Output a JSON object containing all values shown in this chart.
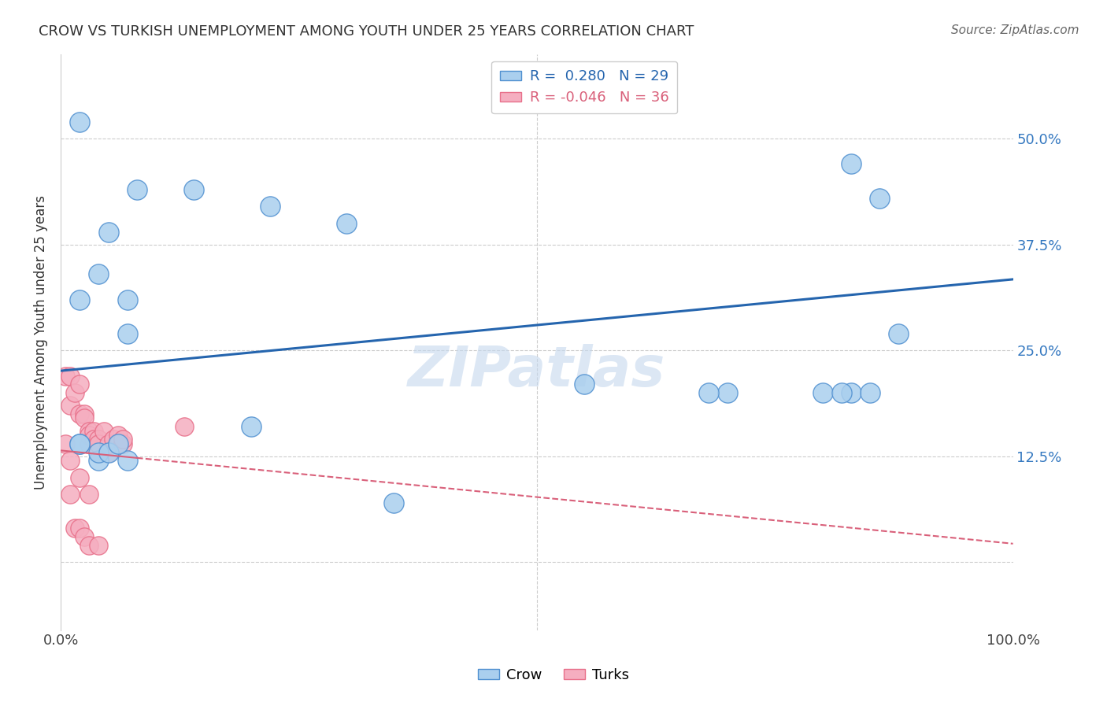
{
  "title": "CROW VS TURKISH UNEMPLOYMENT AMONG YOUTH UNDER 25 YEARS CORRELATION CHART",
  "source": "Source: ZipAtlas.com",
  "ylabel": "Unemployment Among Youth under 25 years",
  "xlim": [
    0,
    1.0
  ],
  "ylim": [
    -0.08,
    0.6
  ],
  "xticks": [
    0.0,
    0.25,
    0.5,
    0.75,
    1.0
  ],
  "xticklabels": [
    "0.0%",
    "",
    "",
    "",
    "100.0%"
  ],
  "yticks": [
    0.0,
    0.125,
    0.25,
    0.375,
    0.5
  ],
  "yticklabels_right": [
    "",
    "12.5%",
    "25.0%",
    "37.5%",
    "50.0%"
  ],
  "crow_R": 0.28,
  "crow_N": 29,
  "turks_R": -0.046,
  "turks_N": 36,
  "crow_color": "#aacfee",
  "turks_color": "#f5aec0",
  "crow_edge_color": "#5090d0",
  "turks_edge_color": "#e8708a",
  "crow_line_color": "#2565ae",
  "turks_line_color": "#d9607a",
  "watermark": "ZIPatlas",
  "crow_x": [
    0.02,
    0.08,
    0.14,
    0.22,
    0.3,
    0.05,
    0.07,
    0.07,
    0.02,
    0.04,
    0.55,
    0.7,
    0.83,
    0.86,
    0.88,
    0.83,
    0.85,
    0.68,
    0.8,
    0.82,
    0.02,
    0.04,
    0.04,
    0.2,
    0.35,
    0.02,
    0.05,
    0.07,
    0.06
  ],
  "crow_y": [
    0.52,
    0.44,
    0.44,
    0.42,
    0.4,
    0.39,
    0.31,
    0.27,
    0.31,
    0.34,
    0.21,
    0.2,
    0.47,
    0.43,
    0.27,
    0.2,
    0.2,
    0.2,
    0.2,
    0.2,
    0.14,
    0.12,
    0.13,
    0.16,
    0.07,
    0.14,
    0.13,
    0.12,
    0.14
  ],
  "turks_x": [
    0.005,
    0.01,
    0.01,
    0.015,
    0.02,
    0.02,
    0.025,
    0.025,
    0.03,
    0.03,
    0.03,
    0.035,
    0.035,
    0.04,
    0.04,
    0.04,
    0.04,
    0.045,
    0.05,
    0.05,
    0.055,
    0.06,
    0.06,
    0.065,
    0.065,
    0.01,
    0.015,
    0.02,
    0.025,
    0.03,
    0.04,
    0.13,
    0.005,
    0.01,
    0.02,
    0.03
  ],
  "turks_y": [
    0.22,
    0.22,
    0.185,
    0.2,
    0.21,
    0.175,
    0.175,
    0.17,
    0.155,
    0.15,
    0.14,
    0.155,
    0.145,
    0.14,
    0.145,
    0.13,
    0.14,
    0.155,
    0.13,
    0.14,
    0.145,
    0.15,
    0.14,
    0.14,
    0.145,
    0.08,
    0.04,
    0.04,
    0.03,
    0.02,
    0.02,
    0.16,
    0.14,
    0.12,
    0.1,
    0.08
  ],
  "crow_trend": [
    0.226,
    0.334
  ],
  "turks_trend": [
    0.132,
    0.022
  ]
}
